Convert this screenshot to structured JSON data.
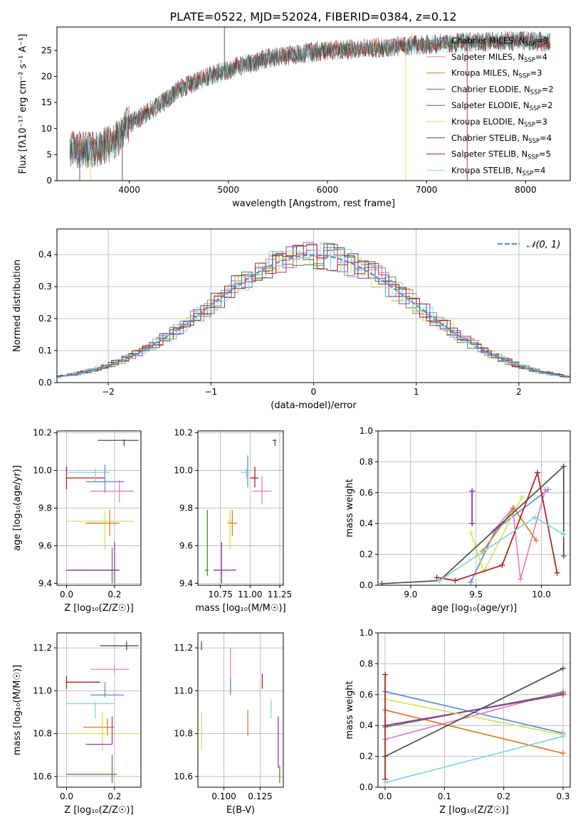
{
  "figure": {
    "title": "PLATE=0522, MJD=52024, FIBERID=0384, z=0.12"
  },
  "colors": {
    "chabrier_miles": "#5b8fd4",
    "salpeter_miles": "#e37fbf",
    "kroupa_miles": "#e07a22",
    "chabrier_elodie": "#4b8a3e",
    "salpeter_elodie": "#9b2fb0",
    "kroupa_elodie": "#cfe65a",
    "chabrier_stelib": "#4d4d4d",
    "salpeter_stelib": "#b31b1b",
    "kroupa_stelib": "#7fd6dc",
    "gaussian": "#5b8fd4",
    "grid": "#b0b0b0"
  },
  "legend": [
    {
      "key": "chabrier_miles",
      "label": "Chabrier MILES, N",
      "sub": "SSP",
      "suffix": "=3"
    },
    {
      "key": "salpeter_miles",
      "label": "Salpeter MILES, N",
      "sub": "SSP",
      "suffix": "=4"
    },
    {
      "key": "kroupa_miles",
      "label": "Kroupa MILES, N",
      "sub": "SSP",
      "suffix": "=3"
    },
    {
      "key": "chabrier_elodie",
      "label": "Chabrier ELODIE, N",
      "sub": "SSP",
      "suffix": "=2"
    },
    {
      "key": "salpeter_elodie",
      "label": "Salpeter ELODIE, N",
      "sub": "SSP",
      "suffix": "=2"
    },
    {
      "key": "kroupa_elodie",
      "label": "Kroupa ELODIE, N",
      "sub": "SSP",
      "suffix": "=3"
    },
    {
      "key": "chabrier_stelib",
      "label": "Chabrier STELIB, N",
      "sub": "SSP",
      "suffix": "=4"
    },
    {
      "key": "salpeter_stelib",
      "label": "Salpeter STELIB, N",
      "sub": "SSP",
      "suffix": "=5"
    },
    {
      "key": "kroupa_stelib",
      "label": "Kroupa STELIB, N",
      "sub": "SSP",
      "suffix": "=4"
    }
  ],
  "chart_data": [
    {
      "id": "spectrum",
      "type": "line",
      "xlabel": "wavelength [Angstrom, rest frame]",
      "ylabel": "Flux [fλ10⁻¹⁷ erg cm⁻² s⁻¹ A⁻¹]",
      "xlim": [
        3270,
        8450
      ],
      "ylim": [
        0,
        29.5
      ],
      "xticks": [
        4000,
        5000,
        6000,
        7000,
        8000
      ],
      "yticks": [
        0,
        5,
        10,
        15,
        20,
        25
      ],
      "grid": false,
      "legend_position": "top-right",
      "continuum": [
        [
          3400,
          6
        ],
        [
          3600,
          5.8
        ],
        [
          3800,
          7
        ],
        [
          3900,
          8.5
        ],
        [
          3950,
          10.5
        ],
        [
          4100,
          12
        ],
        [
          4300,
          14.5
        ],
        [
          4500,
          17.5
        ],
        [
          4800,
          20
        ],
        [
          5100,
          22
        ],
        [
          5400,
          23.5
        ],
        [
          5700,
          24.3
        ],
        [
          6000,
          25
        ],
        [
          6300,
          25.3
        ],
        [
          6600,
          25.6
        ],
        [
          6900,
          26
        ],
        [
          7200,
          26.4
        ],
        [
          7600,
          26.7
        ],
        [
          8000,
          26.8
        ],
        [
          8250,
          26.6
        ]
      ],
      "spikes": [
        [
          3500,
          -1
        ],
        [
          3610,
          -1
        ],
        [
          3930,
          -1
        ],
        [
          4960,
          29.5
        ],
        [
          6790,
          -1
        ],
        [
          7410,
          -1
        ]
      ]
    },
    {
      "id": "residuals",
      "type": "histogram",
      "xlabel": "(data-model)/error",
      "ylabel": "Normed distribution",
      "xlim": [
        -2.5,
        2.5
      ],
      "ylim": [
        0,
        0.48
      ],
      "xticks": [
        -2,
        -1,
        0,
        1,
        2
      ],
      "xtick_labels": [
        "−2",
        "−1",
        "0",
        "1",
        "2"
      ],
      "yticks": [
        0,
        0.1,
        0.2,
        0.3,
        0.4
      ],
      "ytick_labels": [
        "0.0",
        "0.1",
        "0.2",
        "0.3",
        "0.4"
      ],
      "grid": true,
      "bin_width": 0.1,
      "legend": "𝒩(0, 1)",
      "legend_position": "top-right"
    },
    {
      "id": "age_vs_Z",
      "type": "errorbar",
      "xlabel": "Z [log₁₀(Z/Z☉)]",
      "ylabel": "age  [log₁₀(age/yr)]",
      "xlim": [
        -0.04,
        0.31
      ],
      "ylim": [
        9.39,
        10.21
      ],
      "xticks": [
        0.0,
        0.2
      ],
      "xtick_labels": [
        "0.0",
        "0.2"
      ],
      "yticks": [
        9.4,
        9.6,
        9.8,
        10.0,
        10.2
      ],
      "ytick_labels": [
        "9.4",
        "9.6",
        "9.8",
        "10.0",
        "10.2"
      ],
      "grid": true,
      "points": [
        {
          "key": "chabrier_stelib",
          "x": 0.24,
          "xerr": [
            0.11,
            0.06
          ],
          "y": 10.16,
          "yerr": [
            0.03,
            0.005
          ]
        },
        {
          "key": "salpeter_stelib",
          "x": 0.0,
          "xerr": [
            0.0,
            0.16
          ],
          "y": 9.96,
          "yerr": [
            0.06,
            0.06
          ]
        },
        {
          "key": "kroupa_stelib",
          "x": 0.12,
          "xerr": [
            0.12,
            0.06
          ],
          "y": 9.99,
          "yerr": [
            0.05,
            0.02
          ]
        },
        {
          "key": "chabrier_miles",
          "x": 0.16,
          "xerr": [
            0.08,
            0.08
          ],
          "y": 9.94,
          "yerr": [
            0.06,
            0.09
          ]
        },
        {
          "key": "salpeter_miles",
          "x": 0.22,
          "xerr": [
            0.12,
            0.06
          ],
          "y": 9.89,
          "yerr": [
            0.06,
            0.06
          ]
        },
        {
          "key": "kroupa_elodie",
          "x": 0.16,
          "xerr": [
            0.16,
            0.12
          ],
          "y": 9.73,
          "yerr": [
            0.15,
            0.06
          ]
        },
        {
          "key": "kroupa_miles",
          "x": 0.18,
          "xerr": [
            0.1,
            0.04
          ],
          "y": 9.72,
          "yerr": [
            0.07,
            0.07
          ]
        },
        {
          "key": "chabrier_elodie",
          "x": 0.19,
          "xerr": [
            0.19,
            0.03
          ],
          "y": 9.47,
          "yerr": [
            0.07,
            0.12
          ]
        },
        {
          "key": "salpeter_elodie",
          "x": 0.2,
          "xerr": [
            0.2,
            0.02
          ],
          "y": 9.47,
          "yerr": [
            0.07,
            0.15
          ]
        }
      ]
    },
    {
      "id": "age_vs_mass",
      "type": "errorbar",
      "xlabel": "mass [log₁₀(M/M☉)]",
      "xlim": [
        10.56,
        11.28
      ],
      "ylim": [
        9.39,
        10.21
      ],
      "xticks": [
        10.75,
        11.0,
        11.25
      ],
      "xtick_labels": [
        "10.75",
        "11.00",
        "11.25"
      ],
      "yticks": [
        9.4,
        9.6,
        9.8,
        10.0,
        10.2
      ],
      "ytick_labels": [
        "9.4",
        "9.6",
        "9.8",
        "10.0",
        "10.2"
      ],
      "grid": true,
      "points": [
        {
          "key": "chabrier_stelib",
          "x": 11.21,
          "xerr": [
            0.02,
            0.01
          ],
          "y": 10.16,
          "yerr": [
            0.03,
            0.005
          ]
        },
        {
          "key": "chabrier_miles",
          "x": 10.98,
          "xerr": [
            0.02,
            0.01
          ],
          "y": 9.99,
          "yerr": [
            0.08,
            0.09
          ]
        },
        {
          "key": "kroupa_stelib",
          "x": 10.97,
          "xerr": [
            0.05,
            0.02
          ],
          "y": 9.99,
          "yerr": [
            0.03,
            0.02
          ]
        },
        {
          "key": "salpeter_stelib",
          "x": 11.04,
          "xerr": [
            0.04,
            0.03
          ],
          "y": 9.96,
          "yerr": [
            0.05,
            0.06
          ]
        },
        {
          "key": "salpeter_miles",
          "x": 11.1,
          "xerr": [
            0.08,
            0.08
          ],
          "y": 9.89,
          "yerr": [
            0.07,
            0.08
          ]
        },
        {
          "key": "kroupa_elodie",
          "x": 10.83,
          "xerr": [
            0.02,
            0.02
          ],
          "y": 9.73,
          "yerr": [
            0.15,
            0.06
          ]
        },
        {
          "key": "kroupa_miles",
          "x": 10.85,
          "xerr": [
            0.04,
            0.04
          ],
          "y": 9.72,
          "yerr": [
            0.07,
            0.07
          ]
        },
        {
          "key": "chabrier_elodie",
          "x": 10.64,
          "xerr": [
            0.02,
            0.01
          ],
          "y": 9.47,
          "yerr": [
            0.03,
            0.32
          ]
        },
        {
          "key": "salpeter_elodie",
          "x": 10.76,
          "xerr": [
            0.07,
            0.12
          ],
          "y": 9.47,
          "yerr": [
            0.07,
            0.15
          ]
        }
      ]
    },
    {
      "id": "weight_vs_age",
      "type": "line",
      "xlabel": "age  [log₁₀(age/yr)]",
      "ylabel": "mass weight",
      "xlim": [
        8.75,
        10.22
      ],
      "ylim": [
        0,
        1.0
      ],
      "xticks": [
        9.0,
        9.5,
        10.0
      ],
      "xtick_labels": [
        "9.0",
        "9.5",
        "10.0"
      ],
      "yticks": [
        0,
        0.2,
        0.4,
        0.6,
        0.8,
        1.0
      ],
      "ytick_labels": [
        "0.0",
        "0.2",
        "0.4",
        "0.6",
        "0.8",
        "1.0"
      ],
      "grid": true,
      "series": [
        {
          "key": "chabrier_miles",
          "x": [
            9.46,
            9.65,
            10.05
          ],
          "y": [
            0.02,
            0.36,
            0.62
          ]
        },
        {
          "key": "salpeter_miles",
          "x": [
            9.63,
            9.78,
            9.84,
            10.03
          ],
          "y": [
            0.35,
            0.5,
            0.04,
            0.62
          ]
        },
        {
          "key": "kroupa_miles",
          "x": [
            9.55,
            9.79,
            9.96
          ],
          "y": [
            0.22,
            0.5,
            0.29
          ]
        },
        {
          "key": "chabrier_elodie",
          "x": [
            9.47,
            9.47
          ],
          "y": [
            0.4,
            0.61
          ]
        },
        {
          "key": "salpeter_elodie",
          "x": [
            9.47,
            9.47
          ],
          "y": [
            0.4,
            0.61
          ]
        },
        {
          "key": "kroupa_elodie",
          "x": [
            9.46,
            9.56,
            9.85
          ],
          "y": [
            0.34,
            0.09,
            0.57
          ]
        },
        {
          "key": "chabrier_stelib",
          "x": [
            8.78,
            9.22,
            10.17,
            10.17
          ],
          "y": [
            0.01,
            0.03,
            0.77,
            0.19
          ]
        },
        {
          "key": "salpeter_stelib",
          "x": [
            9.2,
            9.34,
            9.7,
            9.97,
            10.12
          ],
          "y": [
            0.05,
            0.03,
            0.13,
            0.73,
            0.08
          ]
        },
        {
          "key": "kroupa_stelib",
          "x": [
            9.22,
            9.95,
            10.17
          ],
          "y": [
            0.03,
            0.44,
            0.33
          ]
        }
      ]
    },
    {
      "id": "mass_vs_Z",
      "type": "errorbar",
      "xlabel": "Z [log₁₀(Z/Z☉)]",
      "ylabel": "mass [log₁₀(M/M☉)]",
      "xlim": [
        -0.04,
        0.31
      ],
      "ylim": [
        10.55,
        11.27
      ],
      "xticks": [
        0.0,
        0.2
      ],
      "xtick_labels": [
        "0.0",
        "0.2"
      ],
      "yticks": [
        10.6,
        10.8,
        11.0,
        11.2
      ],
      "ytick_labels": [
        "10.6",
        "10.8",
        "11.0",
        "11.2"
      ],
      "grid": true,
      "points": [
        {
          "key": "chabrier_stelib",
          "x": 0.25,
          "xerr": [
            0.11,
            0.05
          ],
          "y": 11.21,
          "yerr": [
            0.02,
            0.02
          ]
        },
        {
          "key": "salpeter_miles",
          "x": 0.2,
          "xerr": [
            0.1,
            0.06
          ],
          "y": 11.1,
          "yerr": [
            0.02,
            0.02
          ]
        },
        {
          "key": "salpeter_stelib",
          "x": 0.0,
          "xerr": [
            0.0,
            0.14
          ],
          "y": 11.04,
          "yerr": [
            0.03,
            0.03
          ]
        },
        {
          "key": "chabrier_miles",
          "x": 0.16,
          "xerr": [
            0.06,
            0.08
          ],
          "y": 10.98,
          "yerr": [
            0.01,
            0.06
          ]
        },
        {
          "key": "kroupa_stelib",
          "x": 0.12,
          "xerr": [
            0.12,
            0.08
          ],
          "y": 10.94,
          "yerr": [
            0.07,
            0.01
          ]
        },
        {
          "key": "kroupa_miles",
          "x": 0.17,
          "xerr": [
            0.1,
            0.03
          ],
          "y": 10.83,
          "yerr": [
            0.04,
            0.04
          ]
        },
        {
          "key": "kroupa_elodie",
          "x": 0.15,
          "xerr": [
            0.15,
            0.15
          ],
          "y": 10.8,
          "yerr": [
            0.08,
            0.1
          ]
        },
        {
          "key": "salpeter_elodie",
          "x": 0.19,
          "xerr": [
            0.11,
            0.0
          ],
          "y": 10.75,
          "yerr": [
            0.0,
            0.13
          ]
        },
        {
          "key": "chabrier_elodie",
          "x": 0.19,
          "xerr": [
            0.19,
            0.02
          ],
          "y": 10.61,
          "yerr": [
            0.04,
            0.09
          ]
        }
      ]
    },
    {
      "id": "mass_vs_ebv",
      "type": "errorbar",
      "xlabel": "E(B-V)",
      "xlim": [
        0.082,
        0.141
      ],
      "ylim": [
        10.55,
        11.27
      ],
      "xticks": [
        0.1,
        0.125
      ],
      "xtick_labels": [
        "0.100",
        "0.125"
      ],
      "yticks": [
        10.6,
        10.8,
        11.0,
        11.2
      ],
      "ytick_labels": [
        "10.6",
        "10.8",
        "11.0",
        "11.2"
      ],
      "grid": true,
      "points": [
        {
          "key": "chabrier_stelib",
          "x": 0.0845,
          "y": 11.21,
          "yerr": [
            0.02,
            0.02
          ]
        },
        {
          "key": "salpeter_miles",
          "x": 0.1045,
          "y": 11.11,
          "yerr": [
            0.11,
            0.09
          ]
        },
        {
          "key": "chabrier_miles",
          "x": 0.1045,
          "y": 10.99,
          "yerr": [
            0.01,
            0.07
          ]
        },
        {
          "key": "salpeter_stelib",
          "x": 0.1265,
          "y": 11.03,
          "yerr": [
            0.02,
            0.05
          ]
        },
        {
          "key": "kroupa_stelib",
          "x": 0.1325,
          "y": 10.93,
          "yerr": [
            0.06,
            0.03
          ]
        },
        {
          "key": "kroupa_miles",
          "x": 0.1165,
          "y": 10.84,
          "yerr": [
            0.05,
            0.07
          ]
        },
        {
          "key": "kroupa_elodie",
          "x": 0.0845,
          "y": 10.81,
          "yerr": [
            0.09,
            0.09
          ]
        },
        {
          "key": "salpeter_elodie",
          "x": 0.1375,
          "y": 10.76,
          "yerr": [
            0.12,
            0.12
          ]
        },
        {
          "key": "chabrier_elodie",
          "x": 0.1385,
          "y": 10.61,
          "yerr": [
            0.04,
            0.04
          ]
        }
      ]
    },
    {
      "id": "weight_vs_Z",
      "type": "line",
      "xlabel": "Z [log₁₀(Z/Z☉)]",
      "ylabel": "mass weight",
      "xlim": [
        -0.012,
        0.312
      ],
      "ylim": [
        0,
        1.0
      ],
      "xticks": [
        0.0,
        0.1,
        0.2,
        0.3
      ],
      "xtick_labels": [
        "0.0",
        "0.1",
        "0.2",
        "0.3"
      ],
      "yticks": [
        0,
        0.2,
        0.4,
        0.6,
        0.8,
        1.0
      ],
      "ytick_labels": [
        "0.0",
        "0.2",
        "0.4",
        "0.6",
        "0.8",
        "1.0"
      ],
      "grid": true,
      "series": [
        {
          "key": "chabrier_miles",
          "x": [
            0.0,
            0.3
          ],
          "y": [
            0.62,
            0.35
          ]
        },
        {
          "key": "salpeter_miles",
          "x": [
            0.0,
            0.3
          ],
          "y": [
            0.31,
            0.62
          ]
        },
        {
          "key": "kroupa_miles",
          "x": [
            0.0,
            0.3
          ],
          "y": [
            0.5,
            0.22
          ]
        },
        {
          "key": "chabrier_elodie",
          "x": [
            0.0,
            0.3
          ],
          "y": [
            0.39,
            0.61
          ]
        },
        {
          "key": "salpeter_elodie",
          "x": [
            0.0,
            0.3
          ],
          "y": [
            0.4,
            0.6
          ]
        },
        {
          "key": "kroupa_elodie",
          "x": [
            0.0,
            0.3
          ],
          "y": [
            0.57,
            0.34
          ]
        },
        {
          "key": "chabrier_stelib",
          "x": [
            0.0,
            0.3
          ],
          "y": [
            0.2,
            0.77
          ]
        },
        {
          "key": "salpeter_stelib",
          "x": [
            0.0,
            0.0
          ],
          "y": [
            0.05,
            0.73
          ]
        },
        {
          "key": "kroupa_stelib",
          "x": [
            0.0,
            0.3
          ],
          "y": [
            0.03,
            0.33
          ]
        }
      ]
    }
  ]
}
